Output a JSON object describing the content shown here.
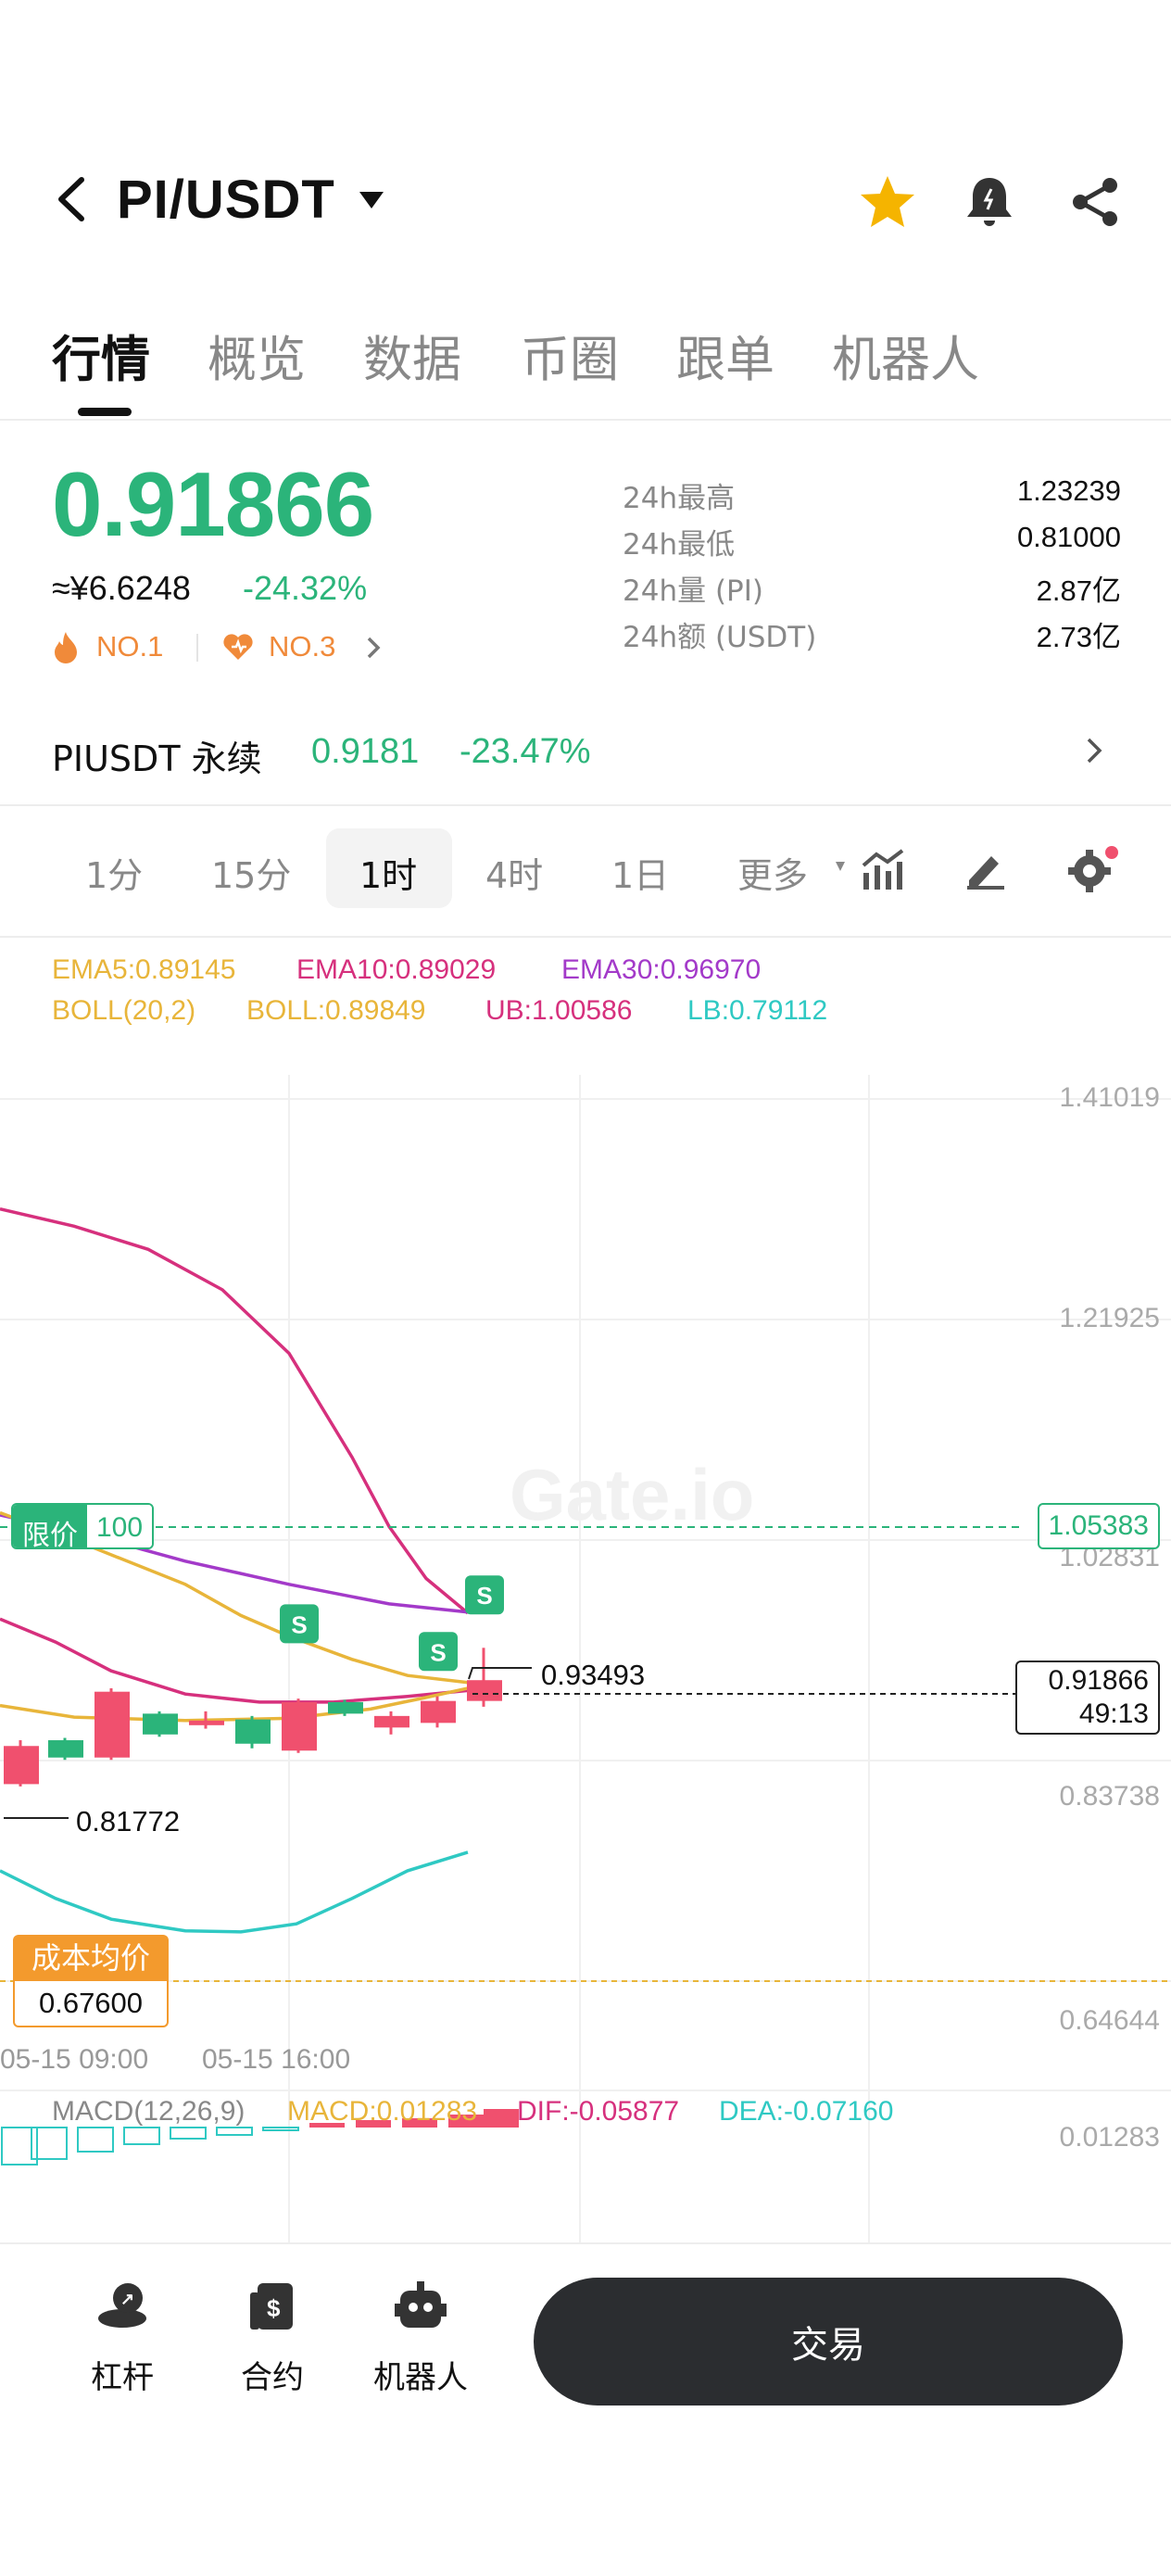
{
  "header": {
    "pair": "PI/USDT",
    "icons": [
      "back-icon",
      "caret-down-icon",
      "star-icon",
      "bell-icon",
      "share-icon"
    ]
  },
  "tabs": [
    "行情",
    "概览",
    "数据",
    "币圈",
    "跟单",
    "机器人"
  ],
  "price": {
    "last": "0.91866",
    "cny": "≈¥6.6248",
    "change": "-24.32%",
    "rank1": "NO.1",
    "rank2": "NO.3"
  },
  "stats": [
    {
      "label": "24h最高",
      "value": "1.23239"
    },
    {
      "label": "24h最低",
      "value": "0.81000"
    },
    {
      "label": "24h量 (PI)",
      "value": "2.87亿"
    },
    {
      "label": "24h额 (USDT)",
      "value": "2.73亿"
    }
  ],
  "perp": {
    "name": "PIUSDT 永续",
    "price": "0.9181",
    "change": "-23.47%"
  },
  "intervals": [
    "1分",
    "15分",
    "1时",
    "4时",
    "1日",
    "更多"
  ],
  "indicators": {
    "ema5": "EMA5:0.89145",
    "ema10": "EMA10:0.89029",
    "ema30": "EMA30:0.96970",
    "boll": "BOLL(20,2)",
    "bollv": "BOLL:0.89849",
    "ub": "UB:1.00586",
    "lb": "LB:0.79112"
  },
  "chart": {
    "axis": [
      "1.41019",
      "1.21925",
      "1.02831",
      "0.83738",
      "0.64644"
    ],
    "limit_label": "限价",
    "limit_qty": "100",
    "limit_price": "1.05383",
    "current_price": "0.91866",
    "countdown": "49:13",
    "high_label": "0.93493",
    "low_label": "0.81772",
    "cost_label": "成本均价",
    "cost_value": "0.67600",
    "times": [
      "05-15 09:00",
      "05-15 16:00"
    ],
    "macd_title": "MACD(12,26,9)",
    "macd": "MACD:0.01283",
    "dif": "DIF:-0.05877",
    "dea": "DEA:-0.07160",
    "macd_axis": "0.01283",
    "marker": "S",
    "colors": {
      "up": "#2bb47a",
      "down": "#f0506e",
      "ema5": "#e8b53a",
      "ema10": "#d6307d",
      "ema30": "#a33ac9",
      "lb": "#2fc9c3"
    }
  },
  "bottom": {
    "items": [
      "杠杆",
      "合约",
      "机器人"
    ],
    "trade": "交易"
  }
}
